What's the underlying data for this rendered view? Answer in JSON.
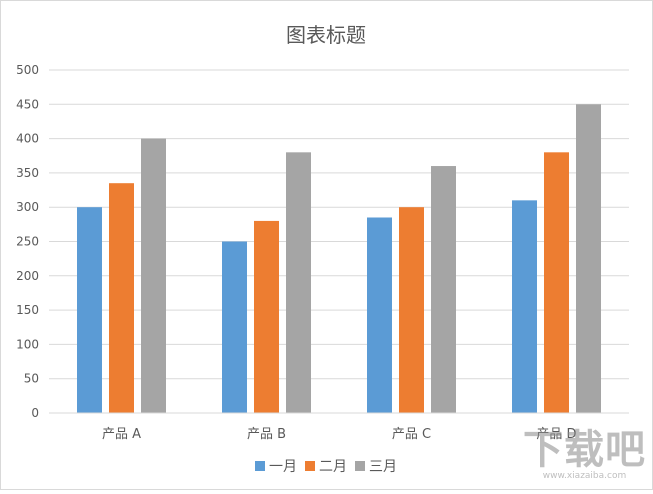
{
  "chart_data": {
    "type": "bar",
    "title": "图表标题",
    "categories": [
      "产品 A",
      "产品 B",
      "产品 C",
      "产品 D"
    ],
    "series": [
      {
        "name": "一月",
        "color": "#5b9bd5",
        "values": [
          300,
          250,
          285,
          310
        ]
      },
      {
        "name": "二月",
        "color": "#ed7d31",
        "values": [
          335,
          280,
          300,
          380
        ]
      },
      {
        "name": "三月",
        "color": "#a5a5a5",
        "values": [
          400,
          380,
          360,
          450
        ]
      }
    ],
    "ylim": [
      0,
      500
    ],
    "yticks": [
      0,
      50,
      100,
      150,
      200,
      250,
      300,
      350,
      400,
      450,
      500
    ],
    "grid": true,
    "legend_position": "bottom"
  },
  "watermark": {
    "logo_text": "下载吧",
    "url_text": "www.xiazaiba.com"
  }
}
